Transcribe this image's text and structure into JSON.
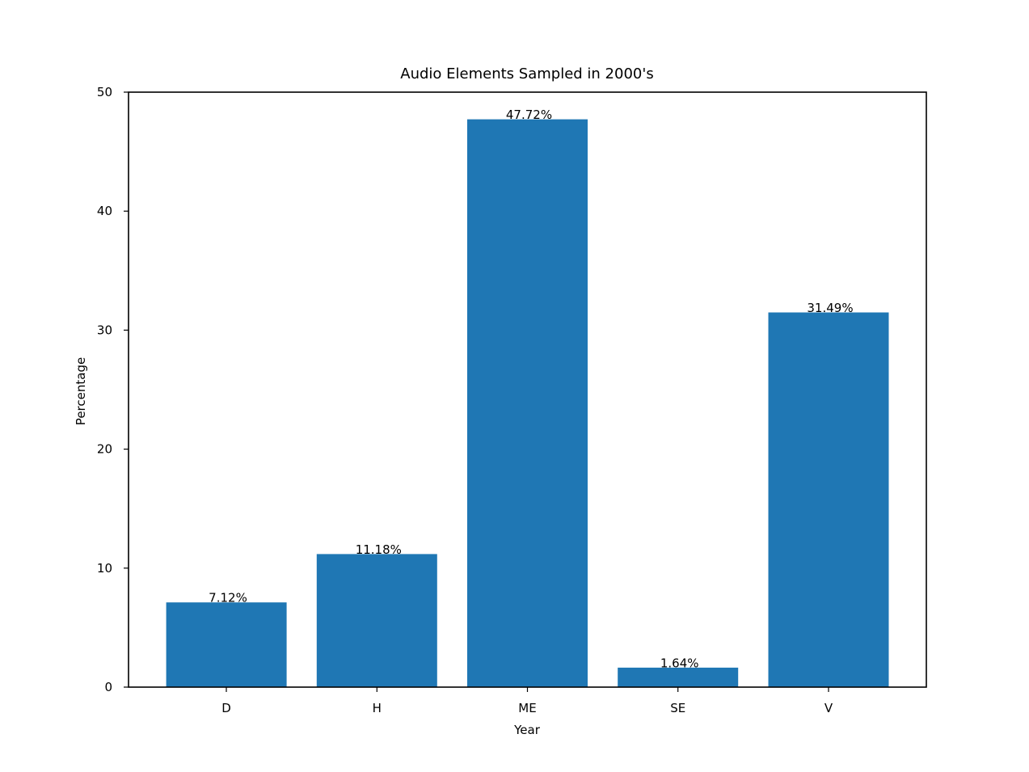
{
  "chart_data": {
    "type": "bar",
    "title": "Audio Elements Sampled in 2000's",
    "xlabel": "Year",
    "ylabel": "Percentage",
    "categories": [
      "D",
      "H",
      "ME",
      "SE",
      "V"
    ],
    "values": [
      7.12,
      11.18,
      47.72,
      1.64,
      31.49
    ],
    "data_labels": [
      "7.12%",
      "11.18%",
      "47.72%",
      "1.64%",
      "31.49%"
    ],
    "ylim": [
      0,
      50
    ],
    "yticks": [
      0,
      10,
      20,
      30,
      40,
      50
    ],
    "bar_color": "#1f77b4",
    "grid": false,
    "legend": "none"
  }
}
